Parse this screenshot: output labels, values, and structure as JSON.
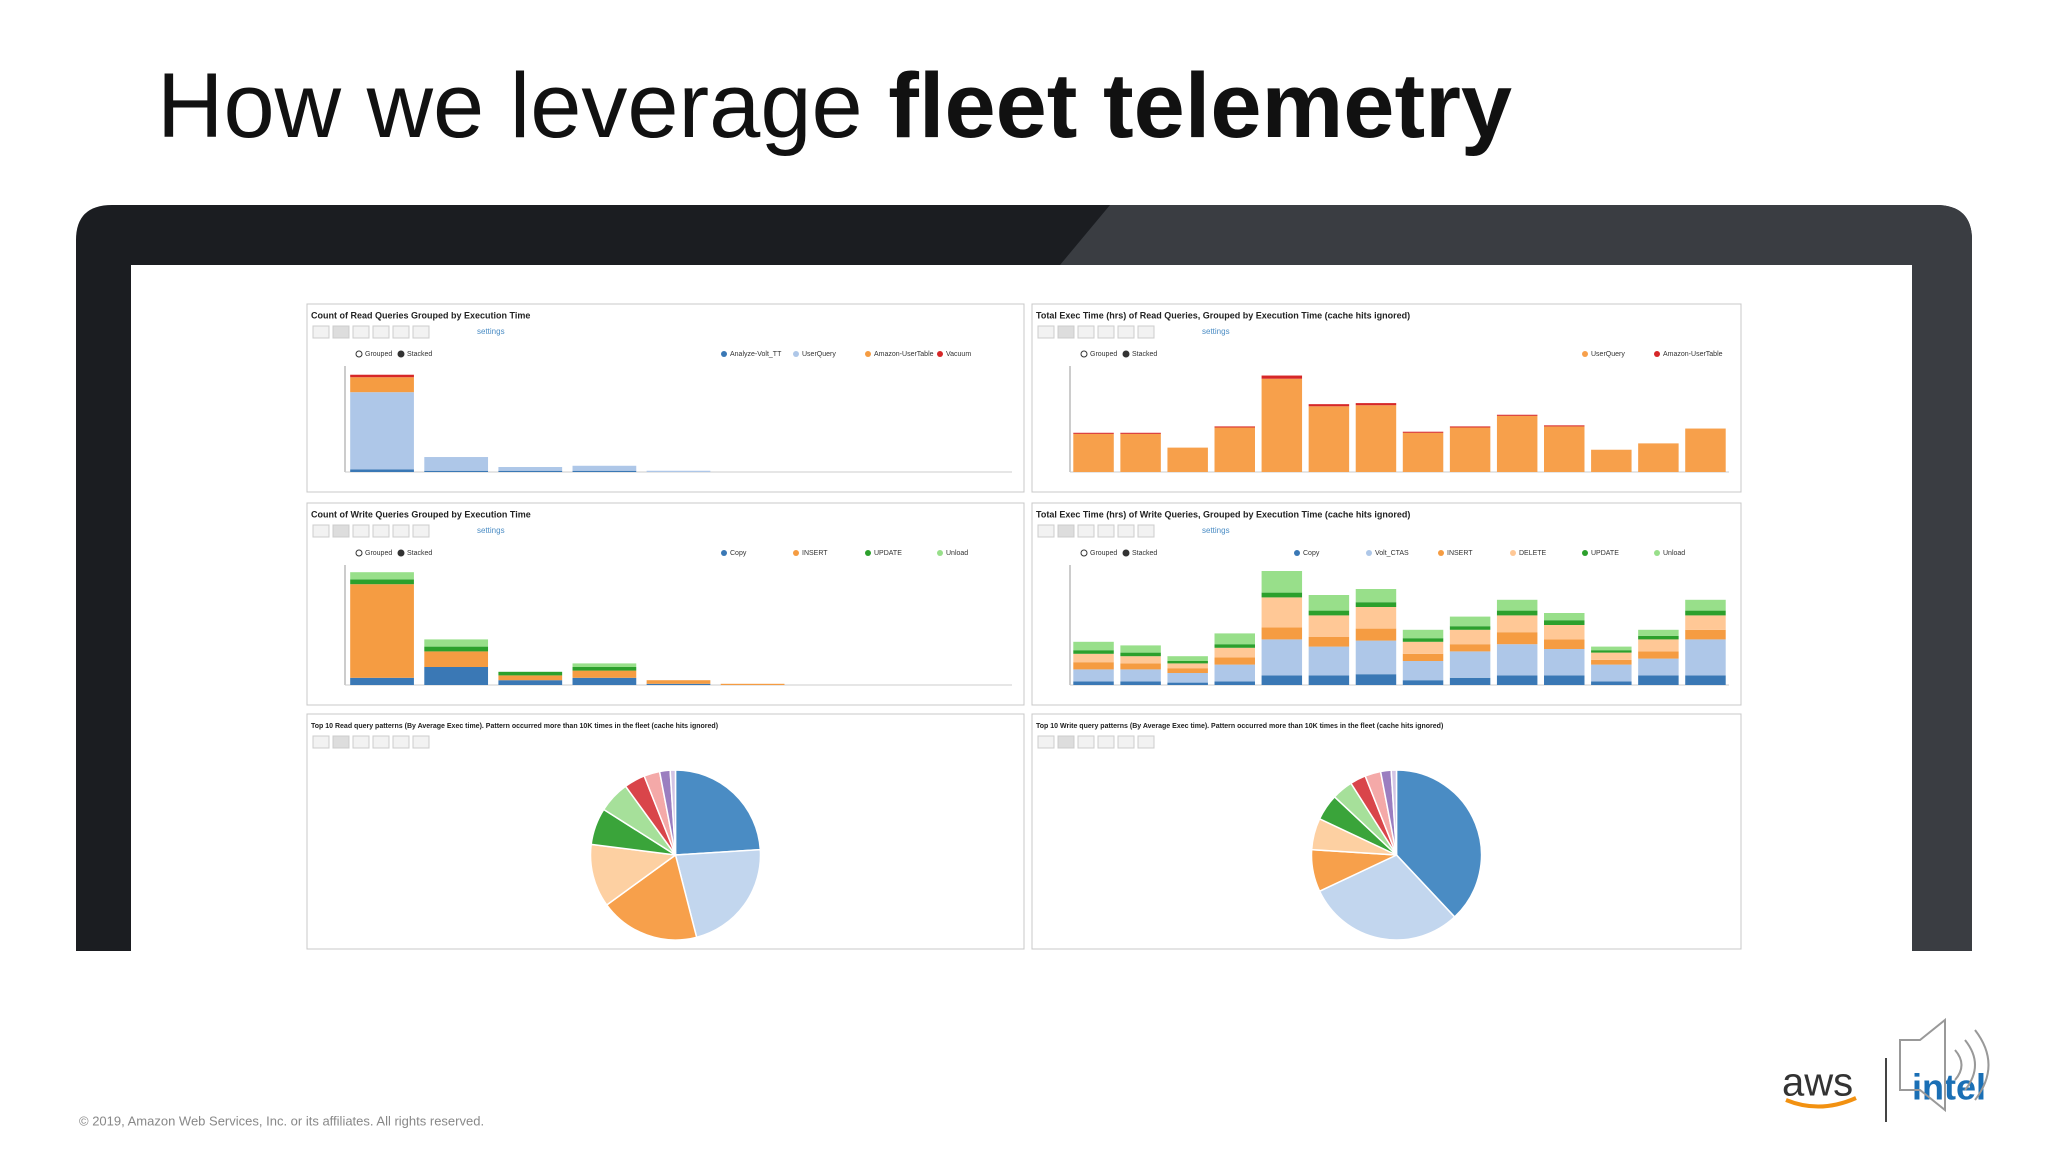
{
  "slide": {
    "title_light": "How we leverage",
    "title_bold": "fleet telemetry",
    "footer": "© 2019, Amazon Web Services, Inc. or its affiliates. All rights reserved.",
    "logos": [
      "aws",
      "intel"
    ]
  },
  "chart_data": [
    {
      "type": "bar",
      "stacked": true,
      "title": "Count of Read Queries Grouped by Execution Time",
      "modes": [
        "Grouped",
        "Stacked"
      ],
      "menu": "settings",
      "categories": [
        null,
        null,
        null,
        null,
        null,
        null,
        null,
        null,
        null
      ],
      "series": [
        {
          "name": "Analyze-Volt_TT",
          "color": "#3a78b5",
          "values": [
            2,
            1,
            1,
            1,
            0,
            0,
            0,
            0,
            0
          ]
        },
        {
          "name": "UserQuery",
          "color": "#aec7e8",
          "values": [
            62,
            11,
            3,
            4,
            1,
            0,
            0,
            0,
            0
          ]
        },
        {
          "name": "Amazon-UserTable",
          "color": "#f59c42",
          "values": [
            12,
            0,
            0,
            0,
            0,
            0,
            0,
            0,
            0
          ]
        },
        {
          "name": "Vacuum",
          "color": "#d62728",
          "values": [
            2,
            0,
            0,
            0,
            0,
            0,
            0,
            0,
            0
          ]
        }
      ],
      "ylim": [
        0,
        85
      ]
    },
    {
      "type": "bar",
      "stacked": true,
      "title": "Total Exec Time (hrs) of Read Queries, Grouped by Execution Time (cache hits ignored)",
      "modes": [
        "Grouped",
        "Stacked"
      ],
      "menu": "settings",
      "categories": [
        null,
        null,
        null,
        null,
        null,
        null,
        null,
        null,
        null,
        null,
        null,
        null,
        null,
        null
      ],
      "series": [
        {
          "name": "UserQuery",
          "color": "#f7a04b",
          "values": [
            36,
            36,
            23,
            42,
            88,
            62,
            63,
            37,
            42,
            53,
            43,
            21,
            27,
            41
          ]
        },
        {
          "name": "Amazon-UserTable",
          "color": "#d62728",
          "values": [
            1,
            1,
            0,
            1,
            3,
            2,
            2,
            1,
            1,
            1,
            1,
            0,
            0,
            0
          ]
        }
      ],
      "ylim": [
        0,
        100
      ]
    },
    {
      "type": "bar",
      "stacked": true,
      "title": "Count of Write Queries Grouped by Execution Time",
      "modes": [
        "Grouped",
        "Stacked"
      ],
      "menu": "settings",
      "categories": [
        null,
        null,
        null,
        null,
        null,
        null,
        null,
        null,
        null
      ],
      "series": [
        {
          "name": "Copy",
          "color": "#3a78b5",
          "values": [
            6,
            15,
            4,
            6,
            1,
            0,
            0,
            0,
            0
          ]
        },
        {
          "name": "INSERT",
          "color": "#f59c42",
          "values": [
            78,
            13,
            4,
            6,
            3,
            1,
            0,
            0,
            0
          ]
        },
        {
          "name": "UPDATE",
          "color": "#2ca02c",
          "values": [
            4,
            4,
            3,
            3,
            0,
            0,
            0,
            0,
            0
          ]
        },
        {
          "name": "Unload",
          "color": "#98df8a",
          "values": [
            6,
            6,
            0,
            3,
            0,
            0,
            0,
            0,
            0
          ]
        }
      ],
      "ylim": [
        0,
        100
      ]
    },
    {
      "type": "bar",
      "stacked": true,
      "title": "Total Exec Time (hrs) of Write Queries, Grouped by Execution Time (cache hits ignored)",
      "modes": [
        "Grouped",
        "Stacked"
      ],
      "menu": "settings",
      "categories": [
        null,
        null,
        null,
        null,
        null,
        null,
        null,
        null,
        null,
        null,
        null,
        null,
        null,
        null
      ],
      "series": [
        {
          "name": "Copy",
          "color": "#3a78b5",
          "values": [
            3,
            3,
            2,
            3,
            8,
            8,
            9,
            4,
            6,
            8,
            8,
            3,
            8,
            8
          ]
        },
        {
          "name": "Volt_CTAS",
          "color": "#aec7e8",
          "values": [
            10,
            10,
            8,
            14,
            30,
            24,
            28,
            16,
            22,
            26,
            22,
            14,
            14,
            30
          ]
        },
        {
          "name": "INSERT",
          "color": "#f59c42",
          "values": [
            6,
            5,
            4,
            6,
            10,
            8,
            10,
            6,
            6,
            10,
            8,
            4,
            6,
            8
          ]
        },
        {
          "name": "DELETE",
          "color": "#ffc896",
          "values": [
            7,
            6,
            4,
            8,
            25,
            18,
            18,
            10,
            12,
            14,
            12,
            6,
            10,
            12
          ]
        },
        {
          "name": "UPDATE",
          "color": "#2ca02c",
          "values": [
            3,
            3,
            2,
            3,
            4,
            4,
            4,
            3,
            3,
            4,
            4,
            2,
            3,
            4
          ]
        },
        {
          "name": "Unload",
          "color": "#98df8a",
          "values": [
            7,
            6,
            4,
            9,
            18,
            13,
            11,
            7,
            8,
            9,
            6,
            3,
            5,
            9
          ]
        }
      ],
      "ylim": [
        0,
        100
      ]
    },
    {
      "type": "pie",
      "title": "Top 10 Read query patterns (By Average Exec time). Pattern occurred more than 10K times in the fleet (cache hits ignored)",
      "categories": [
        null,
        null,
        null,
        null,
        null,
        null,
        null,
        null,
        null,
        null
      ],
      "values": [
        24,
        22,
        19,
        12,
        7,
        6,
        4,
        3,
        2,
        1
      ],
      "colors": [
        "#4a8cc4",
        "#c2d6ee",
        "#f7a04b",
        "#fdd0a2",
        "#3aa43a",
        "#a6e09a",
        "#d9454a",
        "#f4a9a8",
        "#9b7ec0",
        "#d2c4e4"
      ]
    },
    {
      "type": "pie",
      "title": "Top 10 Write query patterns (By Average Exec time). Pattern occurred more than 10K times in the fleet (cache hits ignored)",
      "categories": [
        null,
        null,
        null,
        null,
        null,
        null,
        null,
        null,
        null,
        null
      ],
      "values": [
        38,
        30,
        8,
        6,
        5,
        4,
        3,
        3,
        2,
        1
      ],
      "colors": [
        "#4a8cc4",
        "#c2d6ee",
        "#f7a04b",
        "#fdd0a2",
        "#3aa43a",
        "#a6e09a",
        "#d9454a",
        "#f4a9a8",
        "#9b7ec0",
        "#d2c4e4"
      ]
    }
  ]
}
